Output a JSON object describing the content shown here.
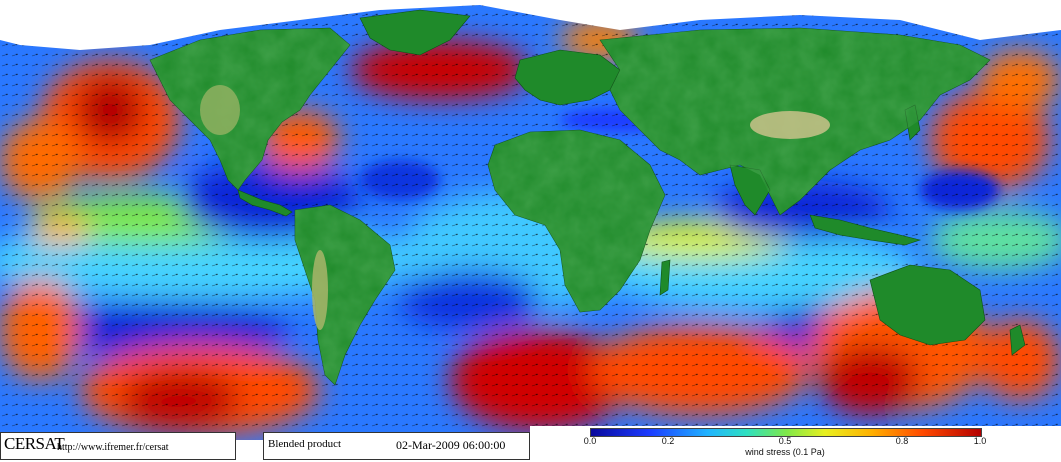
{
  "credit": {
    "logo": "CERSAT",
    "url": "http://www.ifremer.fr/cersat"
  },
  "product": {
    "name": "Blended product",
    "datetime": "02-Mar-2009 06:00:00"
  },
  "colorbar": {
    "ticks": [
      "0.0",
      "0.2",
      "0.5",
      "0.8",
      "1.0"
    ],
    "tick_values": [
      0.0,
      0.2,
      0.5,
      0.8,
      1.0
    ],
    "range": [
      0.0,
      1.0
    ],
    "label": "wind stress (0.1 Pa)"
  },
  "colors": {
    "land_low": "#1f8a2a",
    "land_mid": "#2e7d20",
    "land_high": "#c9c28a",
    "ice": "#ffffff",
    "calm": "#0a28d8",
    "moderate": "#3ec8ff",
    "strong": "#ff5000",
    "very_strong": "#b00000"
  }
}
